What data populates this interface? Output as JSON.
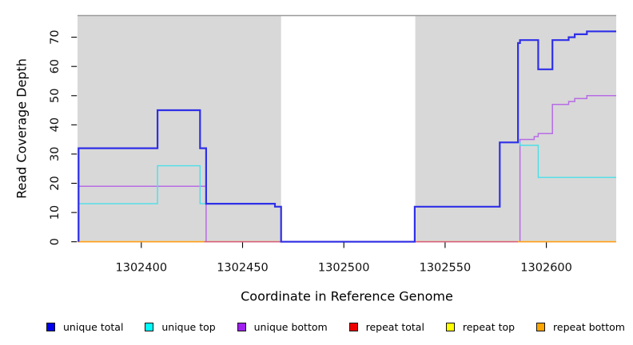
{
  "chart_data": {
    "type": "line",
    "variant": "step-coverage",
    "title": "",
    "xlabel": "Coordinate in Reference Genome",
    "ylabel": "Read Coverage Depth",
    "xlim": [
      1302368.5,
      1302634.5
    ],
    "ylim": [
      0,
      77.4
    ],
    "x_ticks": [
      1302400,
      1302450,
      1302500,
      1302550,
      1302600
    ],
    "y_ticks": [
      0,
      10,
      20,
      30,
      40,
      50,
      60,
      70
    ],
    "grid": false,
    "legend_position": "bottom",
    "background_shaded_regions": [
      [
        1302368.5,
        1302469
      ],
      [
        1302535.3,
        1302634.5
      ]
    ],
    "unshaded_gap_region": [
      1302469,
      1302535.3
    ],
    "colors": {
      "plot_shade": "#d8d8d8",
      "top_border": "#999999",
      "axis": "#000000"
    },
    "series": [
      {
        "name": "unique total",
        "line_color": "#2f2fe8",
        "legend_color": "#0000ee",
        "line_width": 2.2,
        "steps": [
          [
            1302369,
            32
          ],
          [
            1302408,
            45
          ],
          [
            1302429,
            32
          ],
          [
            1302432,
            13
          ],
          [
            1302466,
            12
          ],
          [
            1302469,
            0
          ],
          [
            1302535,
            12
          ],
          [
            1302577,
            34
          ],
          [
            1302586,
            68
          ],
          [
            1302587,
            69
          ],
          [
            1302596,
            59
          ],
          [
            1302603,
            69
          ],
          [
            1302611,
            70
          ],
          [
            1302614,
            71
          ],
          [
            1302620,
            72
          ]
        ]
      },
      {
        "name": "unique top",
        "line_color": "#4adfe8",
        "legend_color": "#00ffff",
        "line_width": 1.4,
        "steps": [
          [
            1302369,
            13
          ],
          [
            1302408,
            26
          ],
          [
            1302429,
            13
          ],
          [
            1302466,
            12
          ],
          [
            1302469,
            0
          ],
          [
            1302535,
            12
          ],
          [
            1302577,
            34
          ],
          [
            1302587,
            33
          ],
          [
            1302596,
            22
          ]
        ]
      },
      {
        "name": "unique bottom",
        "line_color": "#b76ce4",
        "legend_color": "#a020f0",
        "line_width": 1.5,
        "steps": [
          [
            1302369,
            19
          ],
          [
            1302432,
            0
          ],
          [
            1302587,
            35
          ],
          [
            1302594,
            36
          ],
          [
            1302596,
            37
          ],
          [
            1302603,
            47
          ],
          [
            1302611,
            48
          ],
          [
            1302614,
            49
          ],
          [
            1302620,
            50
          ]
        ]
      },
      {
        "name": "repeat total",
        "line_color": "#d4617f",
        "legend_color": "#ee0000",
        "line_width": 1.6,
        "steps": [
          [
            1302369,
            0
          ]
        ]
      },
      {
        "name": "repeat top",
        "line_color": "#ffff00",
        "legend_color": "#ffff00",
        "line_width": 1.4,
        "steps": [
          [
            1302369,
            0
          ]
        ]
      },
      {
        "name": "repeat bottom",
        "line_color": "#ff9d1e",
        "legend_color": "#ffa500",
        "line_width": 1.6,
        "steps": [
          [
            1302369,
            0
          ]
        ]
      }
    ],
    "zero_line_render": [
      {
        "series": "repeat top",
        "color": "#ffff00",
        "from": 1302368.5,
        "to": 1302634.5
      },
      {
        "series": "repeat total",
        "color": "#d4617f",
        "from": 1302431,
        "to": 1302586
      },
      {
        "series": "repeat bottom",
        "color": "#ff9d1e",
        "from": 1302368.5,
        "to": 1302431
      },
      {
        "series": "repeat bottom",
        "color": "#ff9d1e",
        "from": 1302586,
        "to": 1302634.5
      }
    ]
  }
}
